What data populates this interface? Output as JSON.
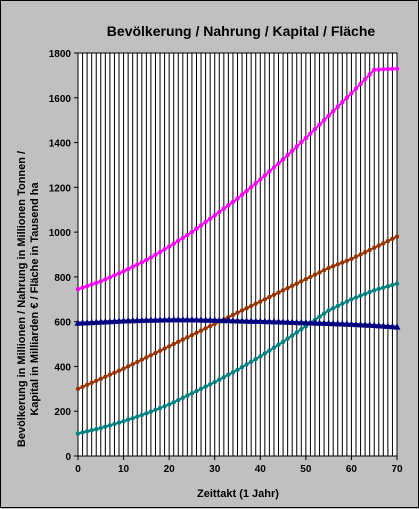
{
  "chart_data": {
    "type": "line",
    "title": "Bevölkerung / Nahrung / Kapital / Fläche",
    "xlabel": "Zeittakt (1 Jahr)",
    "ylabel_line1": "Bevölkerung in Millionen / Nahrung in Millionen Tonnen /",
    "ylabel_line2": "Kapital in Milliarden € / Fläche in Tausend ha",
    "xlim": [
      0,
      70
    ],
    "ylim": [
      0,
      1800
    ],
    "x_ticks": [
      0,
      10,
      20,
      30,
      40,
      50,
      60,
      70
    ],
    "y_ticks": [
      0,
      200,
      400,
      600,
      800,
      1000,
      1200,
      1400,
      1600,
      1800
    ],
    "grid": "vertical lines every year",
    "x": [
      0,
      5,
      10,
      15,
      20,
      25,
      30,
      35,
      40,
      45,
      50,
      55,
      60,
      65,
      70
    ],
    "series": [
      {
        "color": "#ff00ff",
        "marker": "circle",
        "values": [
          745,
          780,
          825,
          875,
          935,
          1000,
          1075,
          1150,
          1235,
          1325,
          1420,
          1520,
          1620,
          1725,
          1730
        ]
      },
      {
        "color": "#993300",
        "marker": "circle",
        "values": [
          300,
          345,
          390,
          440,
          490,
          540,
          590,
          640,
          690,
          740,
          790,
          840,
          880,
          930,
          980
        ]
      },
      {
        "color": "#008080",
        "marker": "circle",
        "values": [
          100,
          125,
          155,
          190,
          230,
          280,
          330,
          385,
          445,
          510,
          580,
          650,
          700,
          740,
          770
        ]
      },
      {
        "color": "#000080",
        "marker": "triangle",
        "values": [
          595,
          600,
          605,
          608,
          610,
          610,
          608,
          605,
          603,
          600,
          597,
          594,
          590,
          585,
          578
        ]
      }
    ]
  }
}
